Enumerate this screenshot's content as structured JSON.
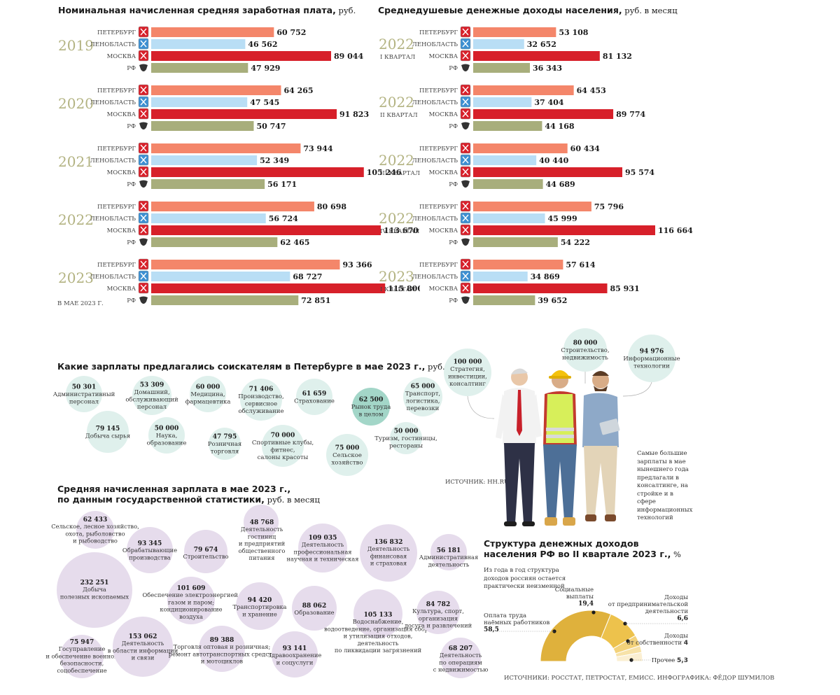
{
  "salary_title": "Номинальная начисленная средняя заработная плата,",
  "salary_unit": " руб.",
  "income_title": "Среднедушевые денежные доходы населения,",
  "income_unit": " руб. в месяц",
  "may_note": "В МАЕ 2023 Г.",
  "vacancies_title": "Какие зарплаты предлагались соискателям в Петербурге в мае 2023 г.,",
  "vacancies_unit": " руб. в месяц",
  "vacancies_source": "ИСТОЧНИК: HH.RU",
  "stat_title_1": "Средняя начисленная зарплата в мае 2023 г.,",
  "stat_title_2": "по данным государственной статистики,",
  "stat_unit": " руб. в месяц",
  "persons_note": "Самые большие зарплаты в мае нынешнего года предлагали в консалтинге, на стройке и в сфере информационных технологий",
  "structure_title_1": "Структура денежных доходов",
  "structure_title_2": "населения РФ во II квартале 2023 г.,",
  "structure_unit": " %",
  "structure_note": "Из года в год структура доходов россиян остается практически неизменной",
  "sources": "ИСТОЧНИКИ: РОССТАТ, ПЕТРОСТАТ, ЕМИСС. ИНФОГРАФИКА: ФЁДОР ШУМИЛОВ",
  "colors": {
    "spb": "#f4866a",
    "lo": "#b9def5",
    "msk": "#d7202a",
    "rf": "#a8ae7c",
    "year": "#b3b382",
    "bubble_green": "#dff0ec",
    "bubble_green_dark": "#a3d6c8",
    "bubble_purple": "#e6dcec",
    "donut": "#e0b43c"
  },
  "chart_data": [
    {
      "type": "bar",
      "title": "Номинальная начисленная средняя заработная плата, руб.",
      "regions": [
        "ПЕТЕРБУРГ",
        "ЛЕНОБЛАСТЬ",
        "МОСКВА",
        "РФ"
      ],
      "groups": [
        {
          "year": "2019",
          "sub": "",
          "values": [
            60752,
            46562,
            89044,
            47929
          ],
          "labels": [
            "60 752",
            "46 562",
            "89 044",
            "47 929"
          ]
        },
        {
          "year": "2020",
          "sub": "",
          "values": [
            64265,
            47545,
            91823,
            50747
          ],
          "labels": [
            "64 265",
            "47 545",
            "91 823",
            "50 747"
          ]
        },
        {
          "year": "2021",
          "sub": "",
          "values": [
            73944,
            52349,
            105246,
            56171
          ],
          "labels": [
            "73 944",
            "52 349",
            "105 246",
            "56 171"
          ]
        },
        {
          "year": "2022",
          "sub": "",
          "values": [
            80698,
            56724,
            113670,
            62465
          ],
          "labels": [
            "80 698",
            "56 724",
            "113 670",
            "62 465"
          ]
        },
        {
          "year": "2023",
          "sub": "",
          "values": [
            93366,
            68727,
            115800,
            72851
          ],
          "labels": [
            "93 366",
            "68 727",
            "115 800",
            "72 851"
          ]
        }
      ]
    },
    {
      "type": "bar",
      "title": "Среднедушевые денежные доходы населения, руб. в месяц",
      "regions": [
        "ПЕТЕРБУРГ",
        "ЛЕНОБЛАСТЬ",
        "МОСКВА",
        "РФ"
      ],
      "groups": [
        {
          "year": "2022",
          "sub": "I КВАРТАЛ",
          "values": [
            53108,
            32652,
            81132,
            36343
          ],
          "labels": [
            "53 108",
            "32 652",
            "81 132",
            "36 343"
          ]
        },
        {
          "year": "2022",
          "sub": "II КВАРТАЛ",
          "values": [
            64453,
            37404,
            89774,
            44168
          ],
          "labels": [
            "64 453",
            "37 404",
            "89 774",
            "44 168"
          ]
        },
        {
          "year": "2022",
          "sub": "III КВАРТАЛ",
          "values": [
            60434,
            40440,
            95574,
            44689
          ],
          "labels": [
            "60 434",
            "40 440",
            "95 574",
            "44 689"
          ]
        },
        {
          "year": "2022",
          "sub": "IV КВАРТАЛ",
          "values": [
            75796,
            45999,
            116664,
            54222
          ],
          "labels": [
            "75 796",
            "45 999",
            "116 664",
            "54 222"
          ]
        },
        {
          "year": "2023",
          "sub": "I КВАРТАЛ",
          "values": [
            57614,
            34869,
            85931,
            39652
          ],
          "labels": [
            "57 614",
            "34 869",
            "85 931",
            "39 652"
          ]
        }
      ]
    },
    {
      "type": "bubble",
      "title": "Какие зарплаты предлагались соискателям в Петербурге в мае 2023 г., руб. в месяц",
      "items": [
        {
          "value": 50301,
          "label": "50 301",
          "name": [
            "Административный",
            "персонал"
          ]
        },
        {
          "value": 53309,
          "label": "53 309",
          "name": [
            "Домашний,",
            "обслуживающий",
            "персонал"
          ]
        },
        {
          "value": 60000,
          "label": "60 000",
          "name": [
            "Медицина,",
            "фармацевтика"
          ]
        },
        {
          "value": 71406,
          "label": "71 406",
          "name": [
            "Производство,",
            "сервисное",
            "обслуживание"
          ]
        },
        {
          "value": 61659,
          "label": "61 659",
          "name": [
            "Страхование"
          ]
        },
        {
          "value": 62500,
          "label": "62 500",
          "name": [
            "Рынок труда",
            "в целом"
          ],
          "highlight": true
        },
        {
          "value": 65000,
          "label": "65 000",
          "name": [
            "Транспорт,",
            "логистика,",
            "перевозки"
          ]
        },
        {
          "value": 100000,
          "label": "100 000",
          "name": [
            "Стратегия,",
            "инвестиции,",
            "консалтинг"
          ]
        },
        {
          "value": 80000,
          "label": "80 000",
          "name": [
            "Строительство,",
            "недвижимость"
          ]
        },
        {
          "value": 94976,
          "label": "94 976",
          "name": [
            "Информационные",
            "технологии"
          ]
        },
        {
          "value": 79145,
          "label": "79 145",
          "name": [
            "Добыча сырья"
          ]
        },
        {
          "value": 50000,
          "label": "50 000",
          "name": [
            "Наука,",
            "образование"
          ]
        },
        {
          "value": 47795,
          "label": "47 795",
          "name": [
            "Розничная",
            "торговля"
          ]
        },
        {
          "value": 70000,
          "label": "70 000",
          "name": [
            "Спортивные клубы,",
            "фитнес,",
            "салоны красоты"
          ]
        },
        {
          "value": 75000,
          "label": "75 000",
          "name": [
            "Сельское",
            "хозяйство"
          ]
        },
        {
          "value": 50000,
          "label": "50 000",
          "name": [
            "Туризм, гостиницы,",
            "рестораны"
          ]
        }
      ]
    },
    {
      "type": "bubble",
      "title": "Средняя начисленная зарплата в мае 2023 г., по данным государственной статистики, руб. в месяц",
      "items": [
        {
          "value": 62433,
          "label": "62 433",
          "name": [
            "Сельское, лесное хозяйство,",
            "охота, рыболовство",
            "и рыбоводство"
          ]
        },
        {
          "value": 93345,
          "label": "93 345",
          "name": [
            "Обрабатывающие",
            "производства"
          ]
        },
        {
          "value": 79674,
          "label": "79 674",
          "name": [
            "Строительство"
          ]
        },
        {
          "value": 48768,
          "label": "48 768",
          "name": [
            "Деятельность",
            "гостиниц",
            "и предприятий",
            "общественного",
            "питания"
          ]
        },
        {
          "value": 109035,
          "label": "109 035",
          "name": [
            "Деятельность",
            "профессиональная",
            "научная и техническая"
          ]
        },
        {
          "value": 136832,
          "label": "136 832",
          "name": [
            "Деятельность",
            "финансовая",
            "и страховая"
          ]
        },
        {
          "value": 56181,
          "label": "56 181",
          "name": [
            "Административная",
            "деятельность"
          ]
        },
        {
          "value": 232251,
          "label": "232 251",
          "name": [
            "Добыча",
            "полезных ископаемых"
          ]
        },
        {
          "value": 101609,
          "label": "101 609",
          "name": [
            "Обеспечение электроэнергией,",
            "газом и паром;",
            "кондиционирование",
            "воздуха"
          ]
        },
        {
          "value": 94420,
          "label": "94 420",
          "name": [
            "Транспортировка",
            "и хранение"
          ]
        },
        {
          "value": 88062,
          "label": "88 062",
          "name": [
            "Образование"
          ]
        },
        {
          "value": 105133,
          "label": "105 133",
          "name": [
            "Водоснабжение,",
            "водоотведение, организация сбора",
            "и утилизация отходов,",
            "деятельность",
            "по ликвидации загрязнений"
          ]
        },
        {
          "value": 84782,
          "label": "84 782",
          "name": [
            "Культура, спорт,",
            "организация",
            "досуга и развлечений"
          ]
        },
        {
          "value": 75947,
          "label": "75 947",
          "name": [
            "Госуправление",
            "и обеспечение военной",
            "безопасности,",
            "соцобеспечение"
          ]
        },
        {
          "value": 153062,
          "label": "153 062",
          "name": [
            "Деятельность",
            "в области информации",
            "и связи"
          ]
        },
        {
          "value": 89388,
          "label": "89 388",
          "name": [
            "Торговля оптовая и розничная;",
            "ремонт автотранспортных средств",
            "и мотоциклов"
          ]
        },
        {
          "value": 93141,
          "label": "93 141",
          "name": [
            "Здравоохранение",
            "и соцуслуги"
          ]
        },
        {
          "value": 68207,
          "label": "68 207",
          "name": [
            "Деятельность",
            "по операциям",
            "с недвижимостью"
          ]
        }
      ]
    },
    {
      "type": "pie",
      "title": "Структура денежных доходов населения РФ во II квартале 2023 г., %",
      "slices": [
        {
          "name": [
            "Оплата труда",
            "наёмных работников"
          ],
          "value": 58.5,
          "label": "58,5"
        },
        {
          "name": [
            "Социальные",
            "выплаты"
          ],
          "value": 19.4,
          "label": "19,4"
        },
        {
          "name": [
            "Доходы",
            "от предпринимательской",
            "деятельности"
          ],
          "value": 6.6,
          "label": "6,6"
        },
        {
          "name": [
            "Доходы",
            "от собственности"
          ],
          "value": 4,
          "label": "4"
        },
        {
          "name": [
            "Прочее"
          ],
          "value": 5.3,
          "label": "5,3"
        }
      ]
    }
  ]
}
